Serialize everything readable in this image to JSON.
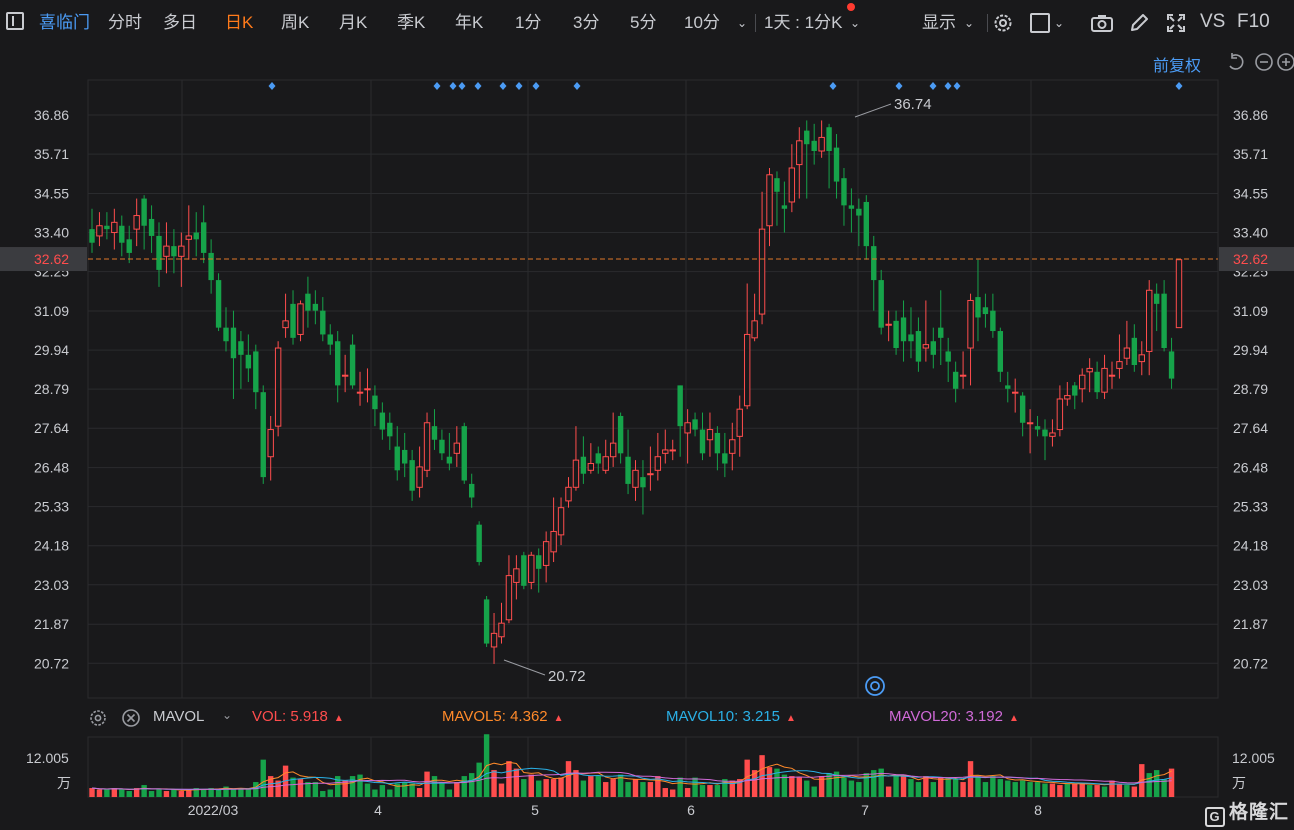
{
  "toolbar": {
    "stock_name": "喜临门",
    "tabs": [
      "分时",
      "多日",
      "日K",
      "周K",
      "月K",
      "季K",
      "年K",
      "1分",
      "3分",
      "5分",
      "10分"
    ],
    "active_tab": "日K",
    "period_select": "1天 : 1分K",
    "display_label": "显示",
    "vs_label": "VS",
    "f10_label": "F10"
  },
  "adjust_label": "前复权",
  "colors": {
    "background": "#19191b",
    "grid": "#2a2b2e",
    "up": "#ff4d4d",
    "down": "#16a34a",
    "accent": "#ff7a1a",
    "link": "#4b9bf4",
    "current_price_line": "#e0772a"
  },
  "price_axis": {
    "ticks": [
      "36.86",
      "35.71",
      "34.55",
      "33.40",
      "32.25",
      "31.09",
      "29.94",
      "28.79",
      "27.64",
      "26.48",
      "25.33",
      "24.18",
      "23.03",
      "21.87",
      "20.72"
    ],
    "current_price": "32.62",
    "max_label": "36.74",
    "min_label": "20.72"
  },
  "time_axis": {
    "labels": [
      "2022/03",
      "4",
      "5",
      "6",
      "7",
      "8"
    ]
  },
  "indicator": {
    "name": "MAVOL",
    "vol_label": "VOL:",
    "vol_value": "5.918",
    "mavol5_label": "MAVOL5:",
    "mavol5_value": "4.362",
    "mavol10_label": "MAVOL10:",
    "mavol10_value": "3.215",
    "mavol20_label": "MAVOL20:",
    "mavol20_value": "3.192",
    "axis_max": "12.005",
    "unit": "万"
  },
  "watermark": "格隆汇",
  "chart_data": {
    "type": "candlestick",
    "ylim": [
      20.0,
      37.5
    ],
    "candles": [
      [
        33.5,
        33.1,
        34.1,
        32.8
      ],
      [
        33.3,
        33.6,
        34.0,
        33.0
      ],
      [
        33.6,
        33.5,
        34.0,
        33.2
      ],
      [
        33.4,
        33.7,
        34.1,
        32.9
      ],
      [
        33.6,
        33.1,
        33.9,
        32.7
      ],
      [
        33.2,
        32.8,
        33.6,
        32.5
      ],
      [
        33.5,
        33.9,
        34.4,
        33.0
      ],
      [
        34.4,
        33.6,
        34.5,
        32.9
      ],
      [
        33.8,
        33.3,
        34.2,
        32.8
      ],
      [
        33.3,
        32.3,
        33.7,
        31.8
      ],
      [
        32.7,
        33.0,
        33.7,
        32.2
      ],
      [
        33.0,
        32.7,
        33.5,
        32.2
      ],
      [
        32.7,
        33.0,
        33.4,
        31.8
      ],
      [
        33.2,
        33.3,
        34.2,
        32.6
      ],
      [
        33.4,
        33.2,
        34.0,
        32.7
      ],
      [
        33.7,
        32.8,
        34.2,
        32.5
      ],
      [
        32.8,
        32.0,
        33.2,
        31.6
      ],
      [
        32.0,
        30.6,
        32.2,
        30.5
      ],
      [
        30.6,
        30.2,
        31.2,
        29.9
      ],
      [
        30.6,
        29.7,
        31.1,
        28.5
      ],
      [
        30.2,
        29.8,
        30.5,
        28.8
      ],
      [
        29.8,
        29.4,
        30.4,
        29.0
      ],
      [
        29.9,
        28.7,
        30.1,
        28.2
      ],
      [
        28.7,
        26.2,
        28.9,
        26.0
      ],
      [
        26.8,
        27.6,
        28.0,
        26.1
      ],
      [
        27.7,
        30.0,
        30.2,
        27.4
      ],
      [
        30.6,
        30.8,
        31.6,
        30.3
      ],
      [
        31.3,
        30.3,
        31.7,
        30.1
      ],
      [
        30.4,
        31.3,
        31.4,
        30.2
      ],
      [
        31.6,
        31.1,
        32.1,
        30.6
      ],
      [
        31.3,
        31.1,
        31.7,
        30.7
      ],
      [
        31.1,
        30.4,
        31.5,
        30.2
      ],
      [
        30.4,
        30.1,
        30.7,
        29.8
      ],
      [
        30.2,
        28.9,
        30.5,
        28.4
      ],
      [
        29.2,
        29.2,
        29.8,
        28.7
      ],
      [
        30.1,
        28.9,
        30.4,
        28.8
      ],
      [
        28.7,
        28.7,
        29.3,
        28.3
      ],
      [
        28.8,
        28.8,
        29.4,
        28.4
      ],
      [
        28.6,
        28.2,
        28.9,
        27.7
      ],
      [
        28.1,
        27.6,
        28.4,
        27.3
      ],
      [
        27.8,
        27.4,
        28.1,
        27.0
      ],
      [
        27.1,
        26.4,
        27.7,
        26.1
      ],
      [
        27.0,
        26.6,
        27.5,
        26.2
      ],
      [
        26.7,
        25.8,
        27.0,
        25.5
      ],
      [
        25.9,
        26.5,
        27.1,
        25.6
      ],
      [
        26.4,
        27.8,
        28.1,
        26.2
      ],
      [
        27.7,
        27.3,
        28.2,
        27.0
      ],
      [
        27.3,
        26.9,
        27.6,
        26.7
      ],
      [
        26.8,
        26.6,
        27.5,
        26.4
      ],
      [
        26.9,
        27.2,
        27.7,
        26.5
      ],
      [
        27.7,
        26.1,
        27.8,
        26.0
      ],
      [
        26.0,
        25.6,
        26.3,
        25.3
      ],
      [
        24.8,
        23.7,
        24.9,
        23.6
      ],
      [
        22.6,
        21.3,
        22.7,
        21.2
      ],
      [
        21.2,
        21.6,
        22.2,
        20.7
      ],
      [
        21.5,
        21.9,
        22.5,
        21.3
      ],
      [
        22.0,
        23.3,
        23.9,
        21.9
      ],
      [
        23.1,
        23.5,
        23.9,
        22.6
      ],
      [
        23.9,
        23.0,
        24.0,
        22.9
      ],
      [
        23.1,
        23.9,
        24.0,
        22.9
      ],
      [
        23.9,
        23.5,
        24.1,
        22.8
      ],
      [
        23.6,
        24.3,
        24.6,
        23.1
      ],
      [
        24.0,
        24.6,
        25.6,
        23.7
      ],
      [
        24.5,
        25.3,
        25.6,
        24.2
      ],
      [
        25.5,
        25.9,
        26.2,
        25.3
      ],
      [
        25.9,
        26.7,
        27.7,
        25.8
      ],
      [
        26.8,
        26.3,
        27.4,
        26.0
      ],
      [
        26.4,
        26.6,
        27.2,
        26.3
      ],
      [
        26.9,
        26.6,
        27.1,
        26.3
      ],
      [
        26.4,
        26.8,
        27.3,
        26.3
      ],
      [
        26.8,
        27.2,
        28.1,
        26.5
      ],
      [
        28.0,
        26.9,
        28.1,
        26.6
      ],
      [
        26.8,
        26.0,
        27.6,
        25.7
      ],
      [
        25.9,
        26.4,
        26.7,
        25.5
      ],
      [
        26.2,
        25.9,
        26.7,
        25.1
      ],
      [
        26.3,
        26.3,
        27.1,
        25.8
      ],
      [
        26.4,
        26.8,
        27.5,
        26.1
      ],
      [
        26.9,
        27.0,
        27.6,
        26.6
      ],
      [
        27.0,
        27.0,
        27.3,
        26.7
      ],
      [
        28.9,
        27.7,
        28.9,
        26.8
      ],
      [
        27.5,
        27.8,
        28.2,
        26.6
      ],
      [
        27.9,
        27.6,
        28.1,
        27.4
      ],
      [
        27.6,
        26.9,
        28.1,
        26.7
      ],
      [
        27.3,
        27.6,
        28.1,
        26.8
      ],
      [
        27.5,
        26.9,
        27.7,
        26.4
      ],
      [
        26.9,
        26.6,
        27.5,
        26.2
      ],
      [
        26.9,
        27.3,
        27.8,
        26.4
      ],
      [
        27.4,
        28.2,
        28.6,
        26.8
      ],
      [
        28.3,
        30.4,
        31.9,
        28.2
      ],
      [
        30.3,
        30.8,
        31.6,
        30.2
      ],
      [
        31.0,
        33.5,
        34.6,
        30.7
      ],
      [
        33.6,
        35.1,
        35.3,
        33.0
      ],
      [
        35.0,
        34.6,
        35.2,
        33.6
      ],
      [
        34.2,
        34.1,
        34.9,
        33.4
      ],
      [
        34.3,
        35.3,
        36.0,
        34.0
      ],
      [
        35.4,
        36.1,
        36.5,
        34.4
      ],
      [
        36.4,
        36.0,
        36.7,
        34.4
      ],
      [
        36.1,
        35.8,
        36.6,
        35.4
      ],
      [
        35.8,
        36.2,
        36.7,
        35.6
      ],
      [
        36.5,
        35.8,
        36.6,
        34.7
      ],
      [
        35.9,
        34.9,
        36.3,
        34.4
      ],
      [
        35.0,
        34.2,
        35.3,
        33.6
      ],
      [
        34.2,
        34.1,
        34.7,
        33.4
      ],
      [
        34.1,
        33.9,
        34.4,
        33.0
      ],
      [
        34.3,
        33.0,
        34.5,
        32.6
      ],
      [
        33.0,
        32.0,
        33.3,
        31.1
      ],
      [
        32.0,
        30.6,
        32.3,
        30.4
      ],
      [
        30.7,
        30.7,
        31.1,
        30.2
      ],
      [
        30.8,
        30.0,
        31.1,
        29.8
      ],
      [
        30.9,
        30.2,
        31.4,
        29.6
      ],
      [
        30.4,
        30.2,
        31.2,
        29.7
      ],
      [
        30.5,
        29.6,
        30.9,
        29.3
      ],
      [
        30.0,
        30.1,
        31.4,
        29.6
      ],
      [
        30.2,
        29.8,
        30.6,
        29.4
      ],
      [
        30.6,
        30.3,
        31.7,
        29.5
      ],
      [
        29.9,
        29.6,
        30.3,
        29.0
      ],
      [
        29.3,
        28.8,
        29.6,
        28.4
      ],
      [
        29.2,
        29.2,
        29.9,
        28.8
      ],
      [
        30.0,
        31.4,
        31.6,
        28.9
      ],
      [
        31.5,
        30.9,
        32.6,
        30.2
      ],
      [
        31.2,
        31.0,
        31.6,
        30.6
      ],
      [
        31.1,
        30.5,
        31.6,
        30.3
      ],
      [
        30.5,
        29.3,
        30.6,
        29.0
      ],
      [
        28.9,
        28.8,
        29.3,
        28.4
      ],
      [
        28.7,
        28.7,
        29.1,
        28.1
      ],
      [
        28.6,
        27.8,
        28.7,
        27.4
      ],
      [
        27.8,
        27.8,
        28.2,
        26.9
      ],
      [
        27.7,
        27.6,
        28.0,
        27.4
      ],
      [
        27.6,
        27.4,
        27.9,
        26.7
      ],
      [
        27.4,
        27.5,
        27.9,
        27.1
      ],
      [
        27.6,
        28.5,
        28.9,
        27.4
      ],
      [
        28.5,
        28.6,
        29.0,
        28.3
      ],
      [
        28.9,
        28.6,
        29.0,
        28.2
      ],
      [
        28.8,
        29.2,
        29.4,
        28.4
      ],
      [
        29.3,
        29.4,
        29.7,
        28.7
      ],
      [
        29.3,
        28.7,
        29.6,
        28.5
      ],
      [
        28.7,
        29.4,
        29.8,
        28.5
      ],
      [
        29.2,
        29.2,
        29.6,
        28.8
      ],
      [
        29.4,
        29.6,
        30.4,
        29.1
      ],
      [
        29.7,
        30.0,
        30.8,
        29.5
      ],
      [
        30.3,
        29.5,
        30.7,
        29.3
      ],
      [
        29.6,
        29.8,
        30.2,
        29.2
      ],
      [
        29.9,
        31.7,
        32.0,
        29.2
      ],
      [
        31.6,
        31.3,
        31.9,
        30.5
      ],
      [
        31.6,
        30.0,
        32.0,
        29.9
      ],
      [
        29.9,
        29.1,
        30.3,
        28.8
      ],
      [
        30.6,
        32.6,
        32.6,
        30.6
      ]
    ],
    "volume": [
      [
        0.6,
        1
      ],
      [
        0.5,
        1
      ],
      [
        0.5,
        -1
      ],
      [
        0.6,
        1
      ],
      [
        0.5,
        -1
      ],
      [
        0.4,
        -1
      ],
      [
        0.6,
        1
      ],
      [
        0.8,
        -1
      ],
      [
        0.4,
        -1
      ],
      [
        0.5,
        -1
      ],
      [
        0.4,
        1
      ],
      [
        0.5,
        -1
      ],
      [
        0.4,
        1
      ],
      [
        0.5,
        1
      ],
      [
        0.6,
        -1
      ],
      [
        0.5,
        -1
      ],
      [
        0.6,
        -1
      ],
      [
        0.5,
        -1
      ],
      [
        0.7,
        -1
      ],
      [
        0.5,
        -1
      ],
      [
        0.6,
        -1
      ],
      [
        0.5,
        -1
      ],
      [
        1.0,
        -1
      ],
      [
        2.5,
        -1
      ],
      [
        1.4,
        1
      ],
      [
        1.1,
        1
      ],
      [
        2.1,
        1
      ],
      [
        1.3,
        -1
      ],
      [
        1.2,
        1
      ],
      [
        1.0,
        -1
      ],
      [
        1.0,
        -1
      ],
      [
        0.4,
        -1
      ],
      [
        0.5,
        -1
      ],
      [
        1.4,
        -1
      ],
      [
        1.1,
        1
      ],
      [
        1.4,
        -1
      ],
      [
        1.5,
        -1
      ],
      [
        0.9,
        -1
      ],
      [
        0.5,
        -1
      ],
      [
        0.8,
        -1
      ],
      [
        0.5,
        -1
      ],
      [
        0.9,
        -1
      ],
      [
        1.0,
        -1
      ],
      [
        0.9,
        -1
      ],
      [
        0.6,
        1
      ],
      [
        1.7,
        1
      ],
      [
        1.4,
        -1
      ],
      [
        1.0,
        -1
      ],
      [
        0.5,
        -1
      ],
      [
        1.0,
        1
      ],
      [
        1.4,
        -1
      ],
      [
        1.6,
        -1
      ],
      [
        2.3,
        -1
      ],
      [
        4.2,
        -1
      ],
      [
        1.8,
        1
      ],
      [
        0.9,
        1
      ],
      [
        2.4,
        1
      ],
      [
        1.9,
        1
      ],
      [
        1.2,
        -1
      ],
      [
        1.5,
        1
      ],
      [
        1.1,
        -1
      ],
      [
        1.2,
        1
      ],
      [
        1.2,
        1
      ],
      [
        1.3,
        1
      ],
      [
        2.4,
        1
      ],
      [
        1.8,
        1
      ],
      [
        1.1,
        -1
      ],
      [
        1.4,
        1
      ],
      [
        1.4,
        -1
      ],
      [
        1.0,
        1
      ],
      [
        1.2,
        1
      ],
      [
        1.5,
        -1
      ],
      [
        1.0,
        -1
      ],
      [
        1.2,
        1
      ],
      [
        1.0,
        -1
      ],
      [
        1.0,
        1
      ],
      [
        1.4,
        1
      ],
      [
        0.6,
        1
      ],
      [
        0.5,
        1
      ],
      [
        1.3,
        -1
      ],
      [
        0.6,
        1
      ],
      [
        1.3,
        -1
      ],
      [
        0.8,
        -1
      ],
      [
        0.8,
        1
      ],
      [
        0.8,
        -1
      ],
      [
        1.2,
        -1
      ],
      [
        1.1,
        1
      ],
      [
        1.2,
        1
      ],
      [
        2.5,
        1
      ],
      [
        1.8,
        1
      ],
      [
        2.8,
        1
      ],
      [
        2.0,
        1
      ],
      [
        1.9,
        -1
      ],
      [
        1.5,
        -1
      ],
      [
        1.4,
        1
      ],
      [
        1.3,
        1
      ],
      [
        1.1,
        -1
      ],
      [
        0.7,
        -1
      ],
      [
        1.4,
        1
      ],
      [
        1.6,
        -1
      ],
      [
        1.7,
        -1
      ],
      [
        1.3,
        -1
      ],
      [
        1.1,
        -1
      ],
      [
        1.0,
        -1
      ],
      [
        1.6,
        -1
      ],
      [
        1.8,
        -1
      ],
      [
        1.9,
        -1
      ],
      [
        0.7,
        1
      ],
      [
        1.4,
        -1
      ],
      [
        1.5,
        1
      ],
      [
        1.2,
        -1
      ],
      [
        1.0,
        -1
      ],
      [
        1.4,
        1
      ],
      [
        1.0,
        -1
      ],
      [
        1.3,
        1
      ],
      [
        1.3,
        -1
      ],
      [
        1.2,
        -1
      ],
      [
        1.0,
        1
      ],
      [
        2.4,
        1
      ],
      [
        1.4,
        -1
      ],
      [
        1.0,
        -1
      ],
      [
        1.4,
        -1
      ],
      [
        1.2,
        -1
      ],
      [
        1.1,
        -1
      ],
      [
        1.0,
        -1
      ],
      [
        1.1,
        -1
      ],
      [
        1.0,
        -1
      ],
      [
        1.0,
        -1
      ],
      [
        0.9,
        -1
      ],
      [
        0.9,
        1
      ],
      [
        0.8,
        1
      ],
      [
        0.9,
        -1
      ],
      [
        0.9,
        1
      ],
      [
        0.9,
        1
      ],
      [
        0.8,
        -1
      ],
      [
        0.8,
        1
      ],
      [
        0.7,
        -1
      ],
      [
        1.1,
        1
      ],
      [
        0.9,
        1
      ],
      [
        0.8,
        -1
      ],
      [
        0.7,
        1
      ],
      [
        2.2,
        1
      ],
      [
        1.6,
        -1
      ],
      [
        1.8,
        -1
      ],
      [
        1.2,
        -1
      ],
      [
        1.9,
        1
      ]
    ]
  }
}
